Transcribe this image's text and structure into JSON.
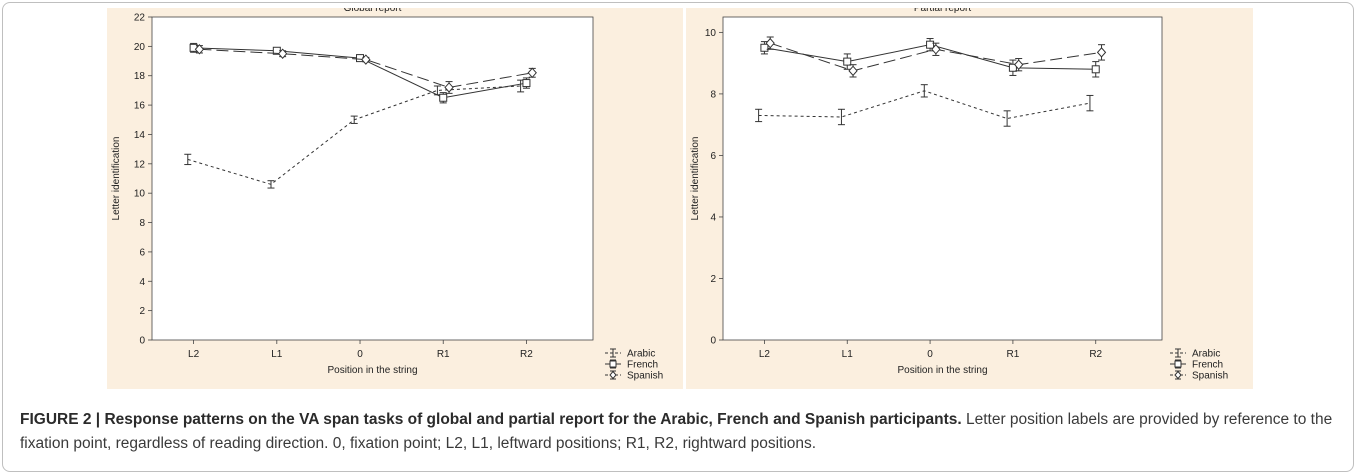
{
  "figure": {
    "label": "FIGURE 2 | ",
    "bold_caption": "Response patterns on the VA span tasks of global and partial report for the Arabic, French and Spanish participants.",
    "body_caption": " Letter position labels are provided by reference to the fixation point, regardless of reading direction. 0, fixation point; L2, L1, leftward positions; R1, R2, rightward positions."
  },
  "chart_data": [
    {
      "type": "line",
      "title": "Global report",
      "xlabel": "Position in the string",
      "ylabel": "Letter identification",
      "categories": [
        "L2",
        "L1",
        "0",
        "R1",
        "R2"
      ],
      "ylim": [
        0,
        22
      ],
      "yticks": [
        0,
        2,
        4,
        6,
        8,
        10,
        12,
        14,
        16,
        18,
        20,
        22
      ],
      "grid": false,
      "legend_position": "outside-bottom-right",
      "series": [
        {
          "name": "Arabic",
          "style": "dotted",
          "marker": "none",
          "offset": -0.07,
          "values": [
            12.3,
            10.6,
            15.0,
            17.0,
            17.3
          ],
          "err": [
            0.35,
            0.25,
            0.25,
            0.3,
            0.4
          ]
        },
        {
          "name": "French",
          "style": "solid",
          "marker": "square",
          "offset": 0.0,
          "values": [
            19.9,
            19.7,
            19.2,
            16.5,
            17.5
          ],
          "err": [
            0.3,
            0.2,
            0.2,
            0.35,
            0.35
          ]
        },
        {
          "name": "Spanish",
          "style": "dashed",
          "marker": "diamond",
          "offset": 0.07,
          "values": [
            19.8,
            19.5,
            19.1,
            17.2,
            18.2
          ],
          "err": [
            0.25,
            0.2,
            0.15,
            0.4,
            0.3
          ]
        }
      ]
    },
    {
      "type": "line",
      "title": "Partial report",
      "xlabel": "Position in the string",
      "ylabel": "Letter identification",
      "categories": [
        "L2",
        "L1",
        "0",
        "R1",
        "R2"
      ],
      "ylim": [
        0,
        10.5
      ],
      "yticks": [
        0,
        2,
        4,
        6,
        8,
        10
      ],
      "grid": false,
      "legend_position": "outside-bottom-right",
      "series": [
        {
          "name": "Arabic",
          "style": "dotted",
          "marker": "none",
          "offset": -0.07,
          "values": [
            7.3,
            7.25,
            8.1,
            7.2,
            7.7
          ],
          "err": [
            0.2,
            0.25,
            0.2,
            0.25,
            0.25
          ]
        },
        {
          "name": "French",
          "style": "solid",
          "marker": "square",
          "offset": 0.0,
          "values": [
            9.5,
            9.05,
            9.6,
            8.85,
            8.8
          ],
          "err": [
            0.2,
            0.25,
            0.2,
            0.25,
            0.25
          ]
        },
        {
          "name": "Spanish",
          "style": "dashed",
          "marker": "diamond",
          "offset": 0.07,
          "values": [
            9.65,
            8.75,
            9.45,
            8.95,
            9.35
          ],
          "err": [
            0.2,
            0.2,
            0.2,
            0.2,
            0.25
          ]
        }
      ]
    }
  ]
}
